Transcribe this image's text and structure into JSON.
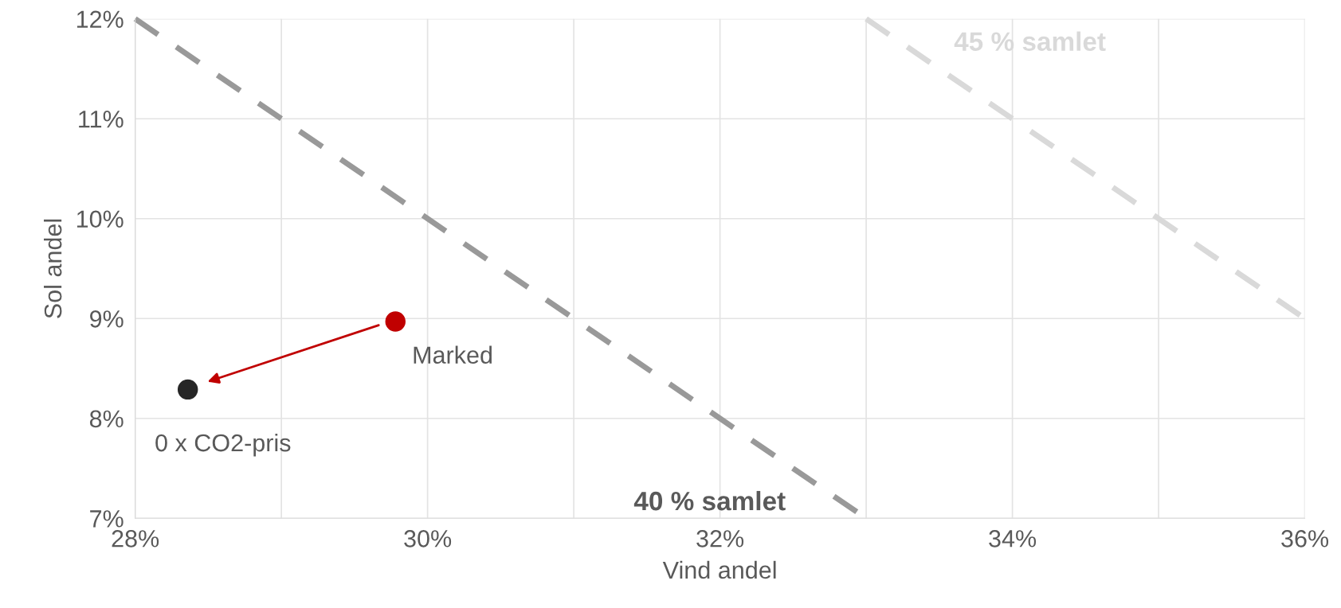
{
  "chart_data": {
    "type": "scatter",
    "xlabel": "Vind andel",
    "ylabel": "Sol andel",
    "xlim": [
      28,
      36
    ],
    "xticks": [
      {
        "value": 28,
        "label": "28%"
      },
      {
        "value": 29,
        "label": null
      },
      {
        "value": 30,
        "label": "30%"
      },
      {
        "value": 31,
        "label": null
      },
      {
        "value": 32,
        "label": "32%"
      },
      {
        "value": 33,
        "label": null
      },
      {
        "value": 34,
        "label": "34%"
      },
      {
        "value": 35,
        "label": null
      },
      {
        "value": 36,
        "label": "36%"
      }
    ],
    "ylim": [
      7,
      12
    ],
    "yticks": [
      {
        "value": 7,
        "label": "7%"
      },
      {
        "value": 8,
        "label": "8%"
      },
      {
        "value": 9,
        "label": "9%"
      },
      {
        "value": 10,
        "label": "10%"
      },
      {
        "value": 11,
        "label": "11%"
      },
      {
        "value": 12,
        "label": "12%"
      }
    ],
    "grid": true,
    "legend": false,
    "series": [
      {
        "name": "40 % samlet",
        "type": "line",
        "line_style": "dashed",
        "color": "#999999",
        "x": [
          28,
          33
        ],
        "values": [
          12,
          7
        ]
      },
      {
        "name": "45 % samlet",
        "type": "line",
        "line_style": "dashed",
        "color": "#d9d9d9",
        "x": [
          33,
          36
        ],
        "values": [
          12,
          9
        ]
      },
      {
        "name": "Marked",
        "marker": "circle",
        "color": "#c00000",
        "x": [
          29.78
        ],
        "values": [
          8.97
        ]
      },
      {
        "name": "0 x CO2-pris",
        "marker": "circle",
        "color": "#262626",
        "x": [
          28.36
        ],
        "values": [
          8.29
        ]
      }
    ]
  }
}
